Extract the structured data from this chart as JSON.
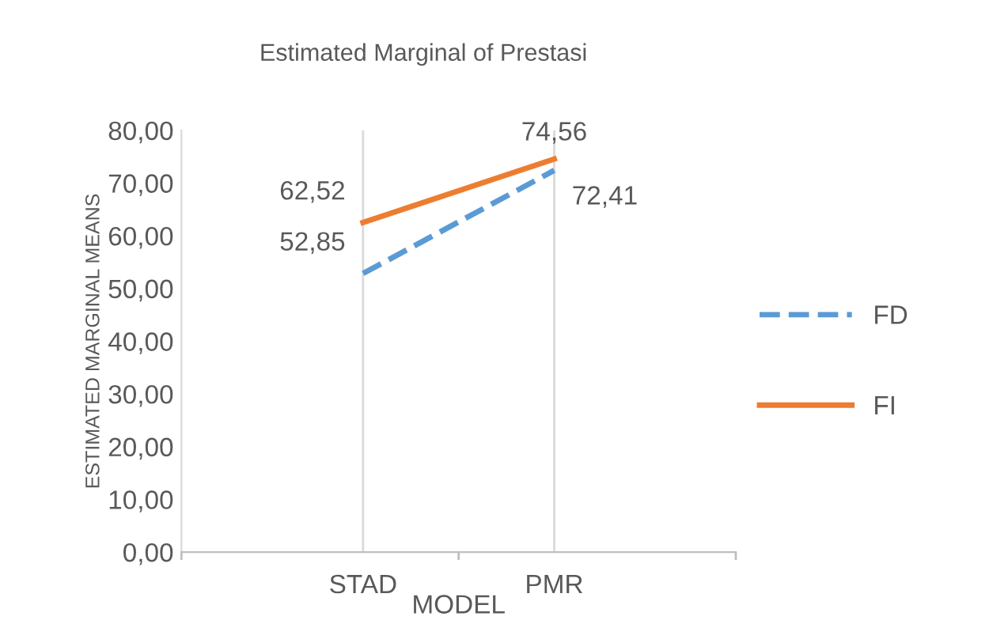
{
  "chart_data": {
    "type": "line",
    "title": "Estimated Marginal of Prestasi",
    "xlabel": "MODEL",
    "ylabel": "ESTIMATED MARGINAL MEANS",
    "categories": [
      "STAD",
      "PMR"
    ],
    "series": [
      {
        "name": "FD",
        "color": "#5b9bd5",
        "line_style": "dashed",
        "values": [
          52.85,
          72.41
        ],
        "value_labels": [
          "52,85",
          "72,41"
        ]
      },
      {
        "name": "FI",
        "color": "#ed7d31",
        "line_style": "solid",
        "values": [
          62.52,
          74.56
        ],
        "value_labels": [
          "62,52",
          "74,56"
        ]
      }
    ],
    "ylim": [
      0,
      80
    ],
    "yticks": [
      {
        "value": 0,
        "label": "0,00"
      },
      {
        "value": 10,
        "label": "10,00"
      },
      {
        "value": 20,
        "label": "20,00"
      },
      {
        "value": 30,
        "label": "30,00"
      },
      {
        "value": 40,
        "label": "40,00"
      },
      {
        "value": 50,
        "label": "50,00"
      },
      {
        "value": 60,
        "label": "60,00"
      },
      {
        "value": 70,
        "label": "70,00"
      },
      {
        "value": 80,
        "label": "80,00"
      }
    ],
    "grid": "x",
    "legend": "right",
    "marker": "none"
  }
}
